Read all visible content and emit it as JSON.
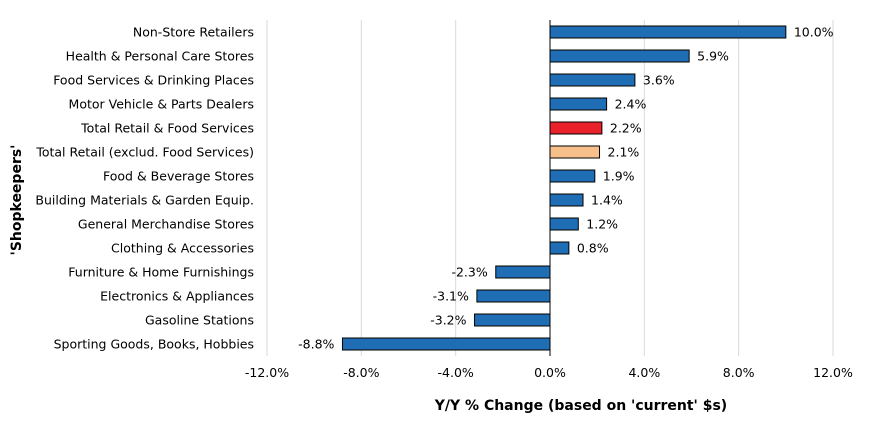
{
  "chart_data": {
    "type": "bar",
    "orientation": "horizontal",
    "title": "",
    "xlabel": "Y/Y % Change (based  on 'current' $s)",
    "ylabel": "'Shopkeepers'",
    "xlim": [
      -12,
      12
    ],
    "xticks": [
      -12,
      -8,
      -4,
      0,
      4,
      8,
      12
    ],
    "xtick_labels": [
      "-12.0%",
      "-8.0%",
      "-4.0%",
      "0.0%",
      "4.0%",
      "8.0%",
      "12.0%"
    ],
    "grid": "vertical",
    "legend": "none",
    "colors": {
      "default": "#1F6DB5",
      "highlight_total": "#E8212A",
      "highlight_retail": "#F7C08A"
    },
    "categories": [
      "Non-Store Retailers",
      "Health & Personal Care Stores",
      "Food Services & Drinking Places",
      "Motor Vehicle & Parts Dealers",
      "Total Retail & Food Services",
      "Total Retail (exclud. Food Services)",
      "Food & Beverage Stores",
      "Building Materials & Garden Equip.",
      "General Merchandise Stores",
      "Clothing & Accessories",
      "Furniture & Home Furnishings",
      "Electronics & Appliances",
      "Gasoline Stations",
      "Sporting Goods, Books, Hobbies"
    ],
    "values": [
      10.0,
      5.9,
      3.6,
      2.4,
      2.2,
      2.1,
      1.9,
      1.4,
      1.2,
      0.8,
      -2.3,
      -3.1,
      -3.2,
      -8.8
    ],
    "value_labels": [
      "10.0%",
      "5.9%",
      "3.6%",
      "2.4%",
      "2.2%",
      "2.1%",
      "1.9%",
      "1.4%",
      "1.2%",
      "0.8%",
      "-2.3%",
      "-3.1%",
      "-3.2%",
      "-8.8%"
    ],
    "bar_colors": [
      "default",
      "default",
      "default",
      "default",
      "highlight_total",
      "highlight_retail",
      "default",
      "default",
      "default",
      "default",
      "default",
      "default",
      "default",
      "default"
    ]
  }
}
